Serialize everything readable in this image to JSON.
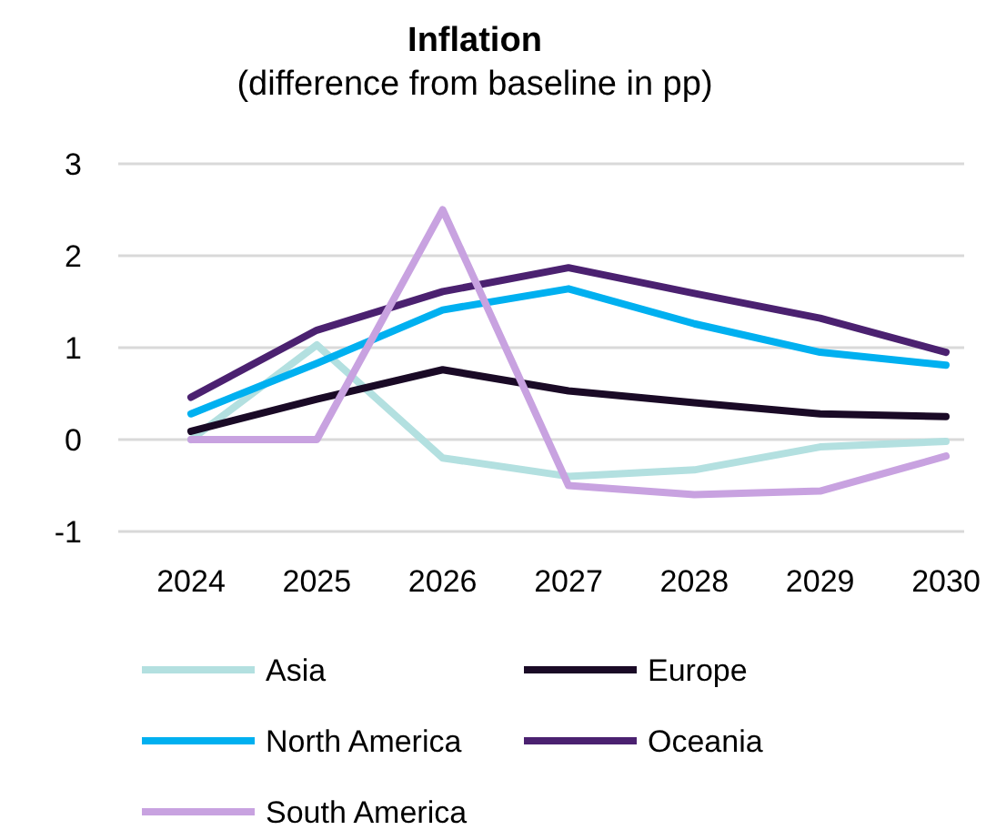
{
  "chart_data": {
    "type": "line",
    "title": "Inflation",
    "subtitle": "(difference from baseline in pp)",
    "categories": [
      "2024",
      "2025",
      "2026",
      "2027",
      "2028",
      "2029",
      "2030"
    ],
    "series": [
      {
        "name": "Asia",
        "color": "#b3e0e0",
        "values": [
          0,
          1.03,
          -0.2,
          -0.4,
          -0.33,
          -0.08,
          -0.02
        ]
      },
      {
        "name": "Europe",
        "color": "#1a0a26",
        "values": [
          0.09,
          0.44,
          0.76,
          0.53,
          0.4,
          0.28,
          0.25
        ]
      },
      {
        "name": "North America",
        "color": "#00b0f0",
        "values": [
          0.28,
          0.83,
          1.41,
          1.64,
          1.26,
          0.95,
          0.81
        ]
      },
      {
        "name": "Oceania",
        "color": "#4b2170",
        "values": [
          0.46,
          1.19,
          1.61,
          1.87,
          1.59,
          1.32,
          0.95
        ]
      },
      {
        "name": "South America",
        "color": "#c8a2e0",
        "values": [
          0,
          0,
          2.5,
          -0.5,
          -0.6,
          -0.56,
          -0.18
        ]
      }
    ],
    "ylim": [
      -1,
      3
    ],
    "yticks": [
      -1,
      0,
      1,
      2,
      3
    ],
    "grid": "y",
    "legend": "bottom",
    "marker": "none",
    "line_style": "solid"
  }
}
